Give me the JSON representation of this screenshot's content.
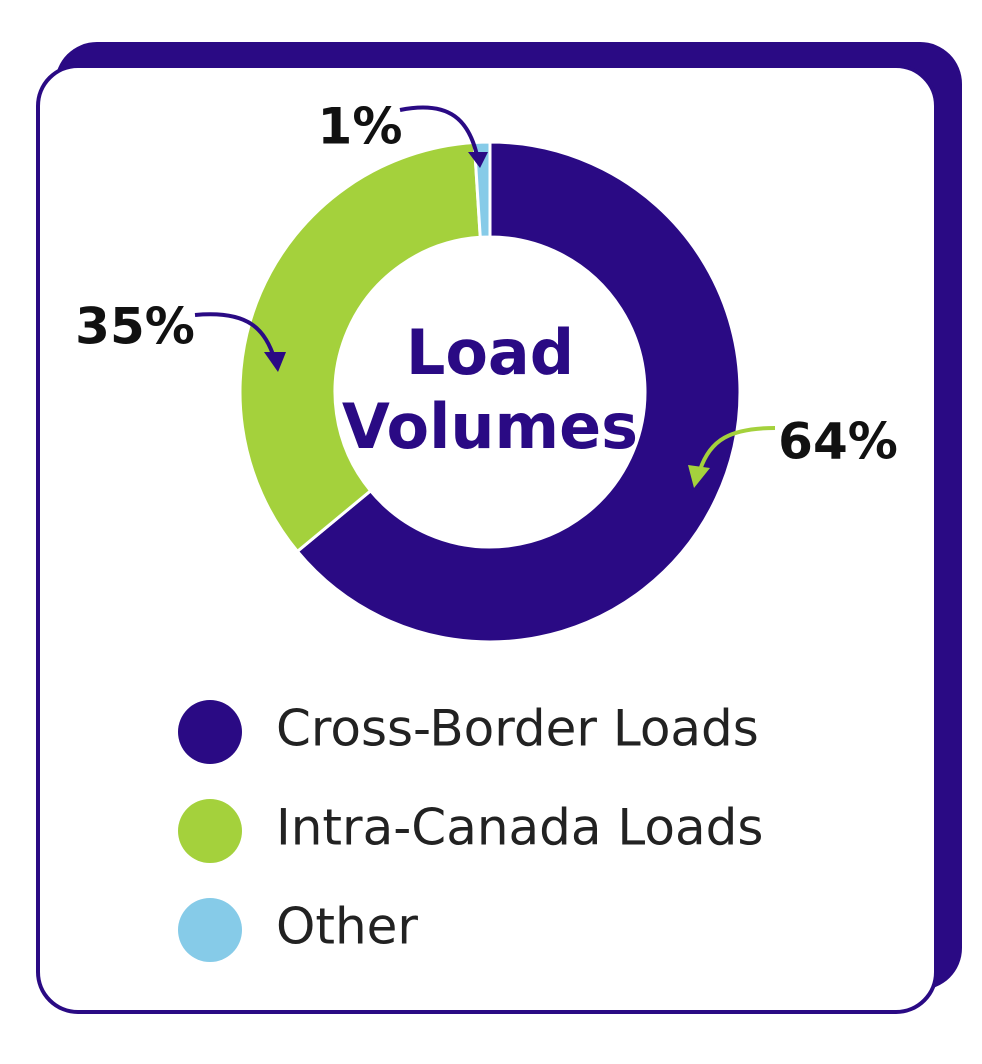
{
  "chart_data": {
    "type": "pie",
    "donut": true,
    "title": "Load Volumes",
    "categories": [
      "Cross-Border Loads",
      "Intra-Canada Loads",
      "Other"
    ],
    "values": [
      64,
      35,
      1
    ],
    "value_labels": [
      "64%",
      "35%",
      "1%"
    ],
    "colors": [
      "#2a0a84",
      "#a4d13c",
      "#86cbe8"
    ]
  }
}
